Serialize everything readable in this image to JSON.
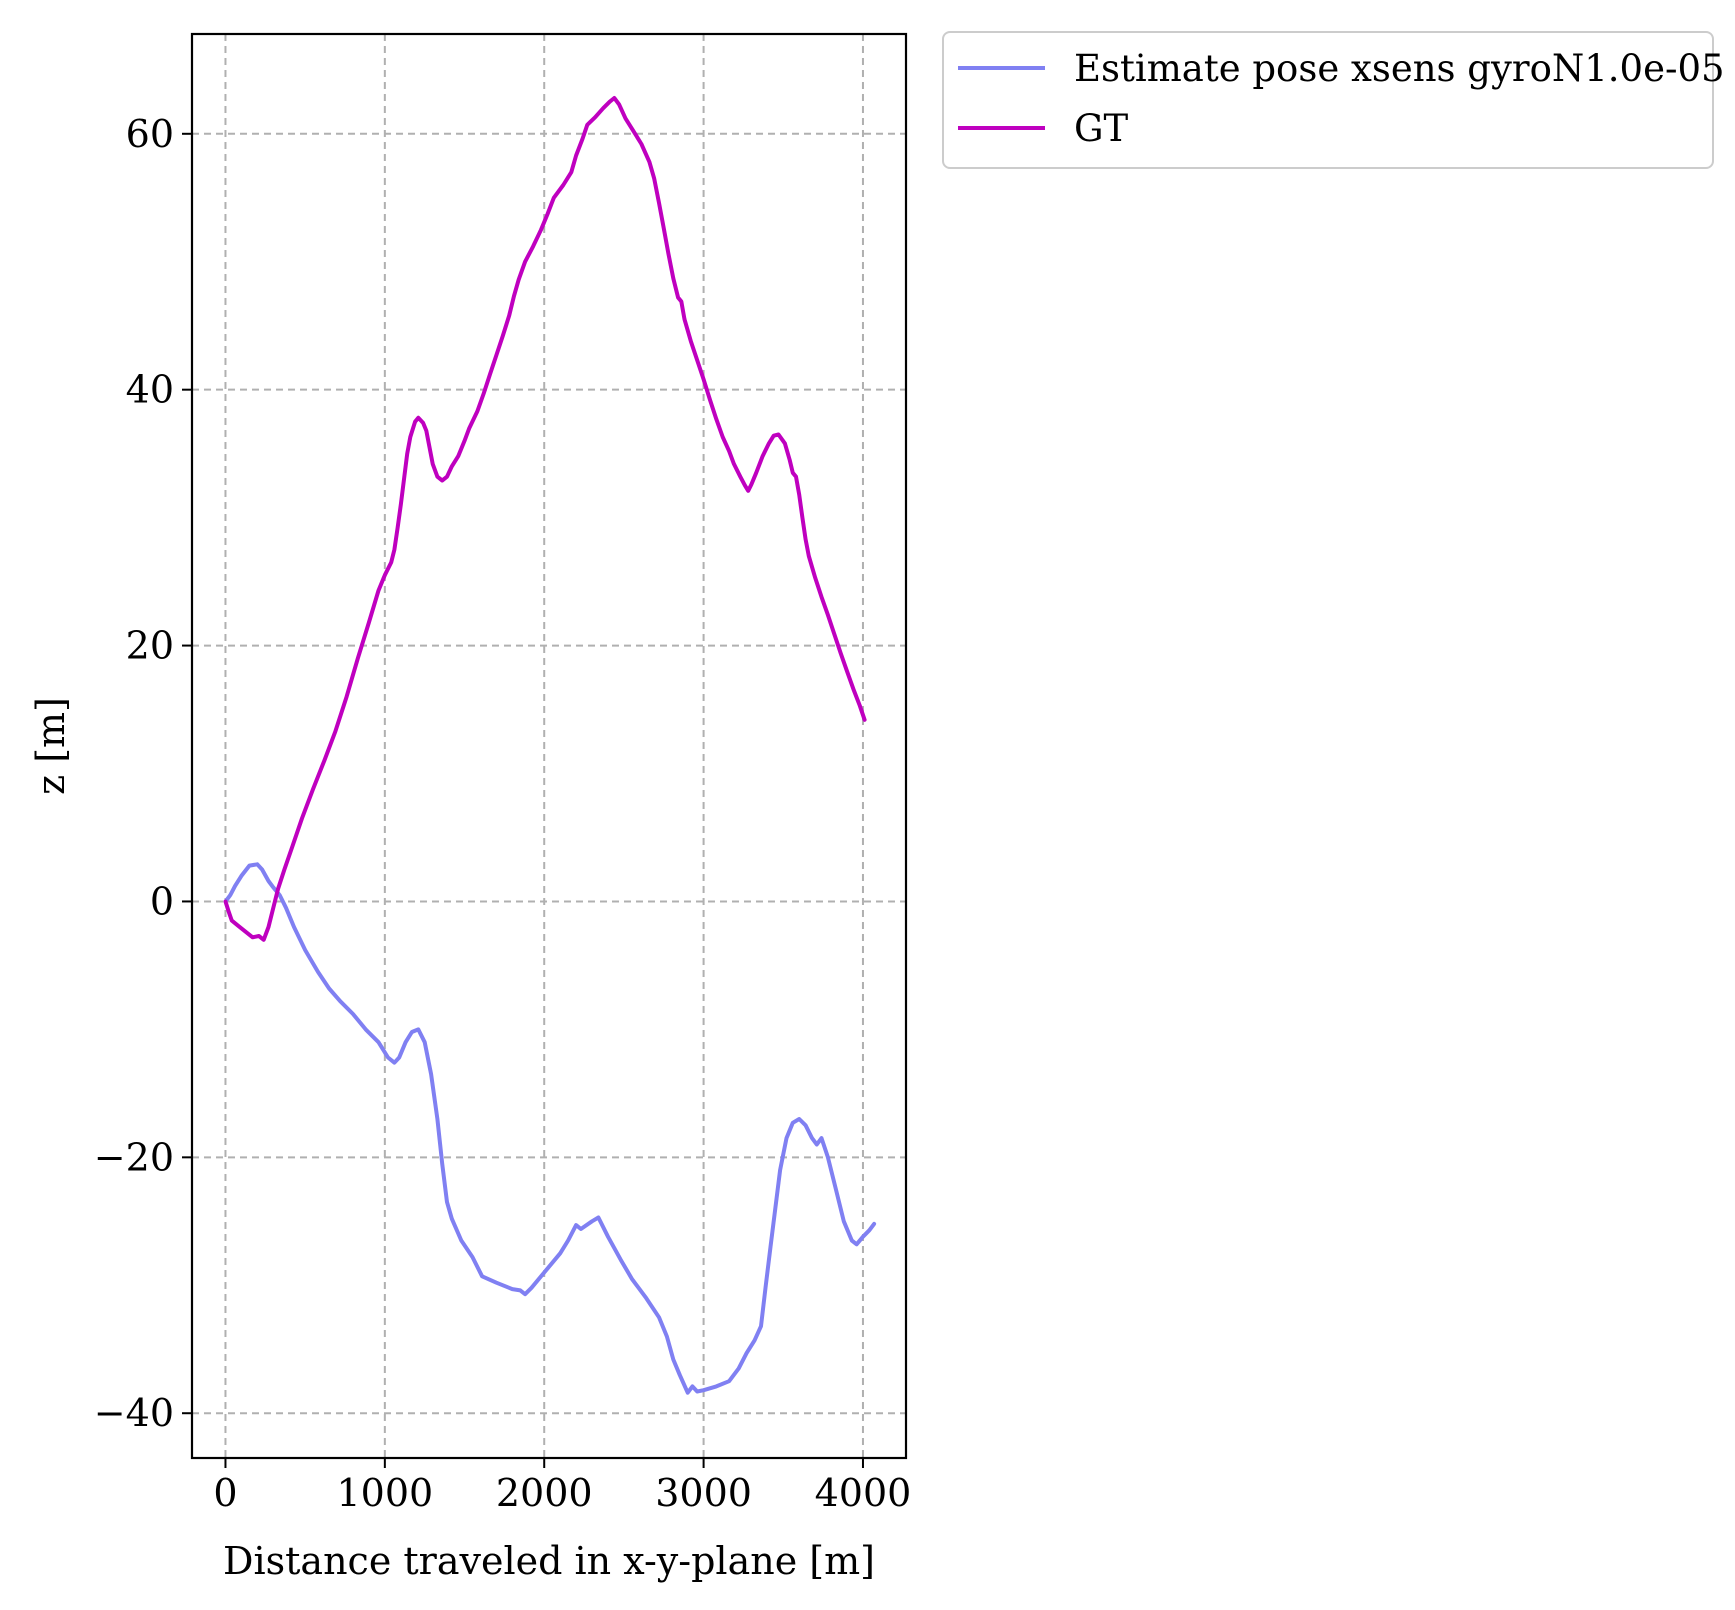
{
  "chart_data": {
    "type": "line",
    "xlabel": "Distance traveled in x-y-plane [m]",
    "ylabel": "z [m]",
    "xlim": [
      -210,
      4270
    ],
    "ylim": [
      -43.5,
      67.8
    ],
    "xticks": [
      {
        "value": 0,
        "label": "0"
      },
      {
        "value": 1000,
        "label": "1000"
      },
      {
        "value": 2000,
        "label": "2000"
      },
      {
        "value": 3000,
        "label": "3000"
      },
      {
        "value": 4000,
        "label": "4000"
      }
    ],
    "yticks": [
      {
        "value": -40,
        "label": "−40"
      },
      {
        "value": -20,
        "label": "−20"
      },
      {
        "value": 0,
        "label": "0"
      },
      {
        "value": 20,
        "label": "20"
      },
      {
        "value": 40,
        "label": "40"
      },
      {
        "value": 60,
        "label": "60"
      }
    ],
    "grid": true,
    "legend_position": "outside-top-right",
    "series": [
      {
        "name": "Estimate pose xsens gyroN1.0e-05",
        "color": "#8080f2",
        "points": [
          [
            0,
            0
          ],
          [
            30,
            0.5
          ],
          [
            60,
            1.2
          ],
          [
            100,
            2
          ],
          [
            150,
            2.8
          ],
          [
            200,
            2.9
          ],
          [
            230,
            2.5
          ],
          [
            270,
            1.6
          ],
          [
            300,
            1.1
          ],
          [
            340,
            0.5
          ],
          [
            380,
            -0.5
          ],
          [
            430,
            -2
          ],
          [
            500,
            -3.8
          ],
          [
            580,
            -5.5
          ],
          [
            650,
            -6.8
          ],
          [
            720,
            -7.8
          ],
          [
            800,
            -8.8
          ],
          [
            880,
            -10
          ],
          [
            960,
            -11
          ],
          [
            1020,
            -12.2
          ],
          [
            1060,
            -12.6
          ],
          [
            1090,
            -12.2
          ],
          [
            1130,
            -11
          ],
          [
            1170,
            -10.2
          ],
          [
            1210,
            -10
          ],
          [
            1250,
            -11
          ],
          [
            1290,
            -13.5
          ],
          [
            1330,
            -17
          ],
          [
            1360,
            -20.5
          ],
          [
            1390,
            -23.5
          ],
          [
            1420,
            -24.8
          ],
          [
            1480,
            -26.5
          ],
          [
            1550,
            -27.8
          ],
          [
            1610,
            -29.3
          ],
          [
            1700,
            -29.8
          ],
          [
            1800,
            -30.3
          ],
          [
            1850,
            -30.4
          ],
          [
            1880,
            -30.7
          ],
          [
            1920,
            -30.2
          ],
          [
            2000,
            -29
          ],
          [
            2100,
            -27.5
          ],
          [
            2150,
            -26.5
          ],
          [
            2200,
            -25.3
          ],
          [
            2230,
            -25.6
          ],
          [
            2300,
            -25
          ],
          [
            2340,
            -24.7
          ],
          [
            2400,
            -26.2
          ],
          [
            2480,
            -28
          ],
          [
            2550,
            -29.5
          ],
          [
            2640,
            -31
          ],
          [
            2720,
            -32.5
          ],
          [
            2770,
            -34
          ],
          [
            2810,
            -35.8
          ],
          [
            2850,
            -37
          ],
          [
            2900,
            -38.4
          ],
          [
            2930,
            -37.9
          ],
          [
            2960,
            -38.3
          ],
          [
            3000,
            -38.2
          ],
          [
            3080,
            -37.9
          ],
          [
            3160,
            -37.5
          ],
          [
            3220,
            -36.5
          ],
          [
            3270,
            -35.3
          ],
          [
            3320,
            -34.3
          ],
          [
            3360,
            -33.2
          ],
          [
            3390,
            -30
          ],
          [
            3420,
            -27
          ],
          [
            3450,
            -24
          ],
          [
            3480,
            -21
          ],
          [
            3520,
            -18.5
          ],
          [
            3560,
            -17.3
          ],
          [
            3600,
            -17
          ],
          [
            3640,
            -17.5
          ],
          [
            3680,
            -18.5
          ],
          [
            3710,
            -19
          ],
          [
            3740,
            -18.5
          ],
          [
            3780,
            -20
          ],
          [
            3830,
            -22.5
          ],
          [
            3880,
            -25
          ],
          [
            3930,
            -26.5
          ],
          [
            3960,
            -26.8
          ],
          [
            4000,
            -26.2
          ],
          [
            4040,
            -25.7
          ],
          [
            4070,
            -25.2
          ]
        ]
      },
      {
        "name": "GT",
        "color": "#bf00bf",
        "points": [
          [
            0,
            0
          ],
          [
            20,
            -0.8
          ],
          [
            40,
            -1.5
          ],
          [
            80,
            -1.9
          ],
          [
            120,
            -2.3
          ],
          [
            170,
            -2.8
          ],
          [
            210,
            -2.7
          ],
          [
            240,
            -3.0
          ],
          [
            270,
            -2
          ],
          [
            300,
            -0.5
          ],
          [
            330,
            1
          ],
          [
            370,
            2.5
          ],
          [
            420,
            4.3
          ],
          [
            480,
            6.5
          ],
          [
            550,
            8.8
          ],
          [
            620,
            11
          ],
          [
            690,
            13.3
          ],
          [
            760,
            16
          ],
          [
            830,
            19
          ],
          [
            900,
            21.8
          ],
          [
            960,
            24.3
          ],
          [
            1000,
            25.5
          ],
          [
            1040,
            26.5
          ],
          [
            1060,
            27.5
          ],
          [
            1080,
            29.2
          ],
          [
            1100,
            31
          ],
          [
            1120,
            33
          ],
          [
            1140,
            35
          ],
          [
            1160,
            36.3
          ],
          [
            1190,
            37.5
          ],
          [
            1210,
            37.8
          ],
          [
            1240,
            37.4
          ],
          [
            1260,
            36.8
          ],
          [
            1280,
            35.5
          ],
          [
            1300,
            34.2
          ],
          [
            1330,
            33.2
          ],
          [
            1360,
            32.9
          ],
          [
            1390,
            33.2
          ],
          [
            1420,
            34
          ],
          [
            1460,
            34.8
          ],
          [
            1500,
            36
          ],
          [
            1530,
            37
          ],
          [
            1580,
            38.3
          ],
          [
            1620,
            39.7
          ],
          [
            1660,
            41.2
          ],
          [
            1700,
            42.7
          ],
          [
            1740,
            44.2
          ],
          [
            1780,
            45.8
          ],
          [
            1810,
            47.3
          ],
          [
            1840,
            48.6
          ],
          [
            1880,
            50
          ],
          [
            1930,
            51.2
          ],
          [
            1980,
            52.5
          ],
          [
            2020,
            53.7
          ],
          [
            2060,
            55
          ],
          [
            2120,
            56
          ],
          [
            2170,
            57
          ],
          [
            2200,
            58.3
          ],
          [
            2240,
            59.6
          ],
          [
            2270,
            60.7
          ],
          [
            2320,
            61.3
          ],
          [
            2370,
            62
          ],
          [
            2410,
            62.5
          ],
          [
            2440,
            62.8
          ],
          [
            2470,
            62.3
          ],
          [
            2510,
            61.2
          ],
          [
            2560,
            60.2
          ],
          [
            2610,
            59.2
          ],
          [
            2660,
            57.8
          ],
          [
            2690,
            56.5
          ],
          [
            2720,
            54.6
          ],
          [
            2750,
            52.6
          ],
          [
            2780,
            50.6
          ],
          [
            2810,
            48.7
          ],
          [
            2840,
            47.2
          ],
          [
            2860,
            46.9
          ],
          [
            2880,
            45.5
          ],
          [
            2920,
            43.8
          ],
          [
            2960,
            42.3
          ],
          [
            3000,
            40.8
          ],
          [
            3040,
            39.2
          ],
          [
            3080,
            37.7
          ],
          [
            3120,
            36.3
          ],
          [
            3160,
            35.2
          ],
          [
            3190,
            34.2
          ],
          [
            3230,
            33.2
          ],
          [
            3260,
            32.5
          ],
          [
            3280,
            32.1
          ],
          [
            3300,
            32.6
          ],
          [
            3330,
            33.5
          ],
          [
            3370,
            34.8
          ],
          [
            3410,
            35.8
          ],
          [
            3440,
            36.4
          ],
          [
            3470,
            36.5
          ],
          [
            3510,
            35.8
          ],
          [
            3540,
            34.5
          ],
          [
            3560,
            33.5
          ],
          [
            3580,
            33.2
          ],
          [
            3600,
            31.8
          ],
          [
            3620,
            30
          ],
          [
            3640,
            28.3
          ],
          [
            3660,
            27
          ],
          [
            3700,
            25.3
          ],
          [
            3740,
            23.8
          ],
          [
            3780,
            22.4
          ],
          [
            3820,
            20.9
          ],
          [
            3860,
            19.4
          ],
          [
            3900,
            18
          ],
          [
            3940,
            16.6
          ],
          [
            3980,
            15.3
          ],
          [
            4010,
            14.2
          ]
        ]
      }
    ]
  }
}
